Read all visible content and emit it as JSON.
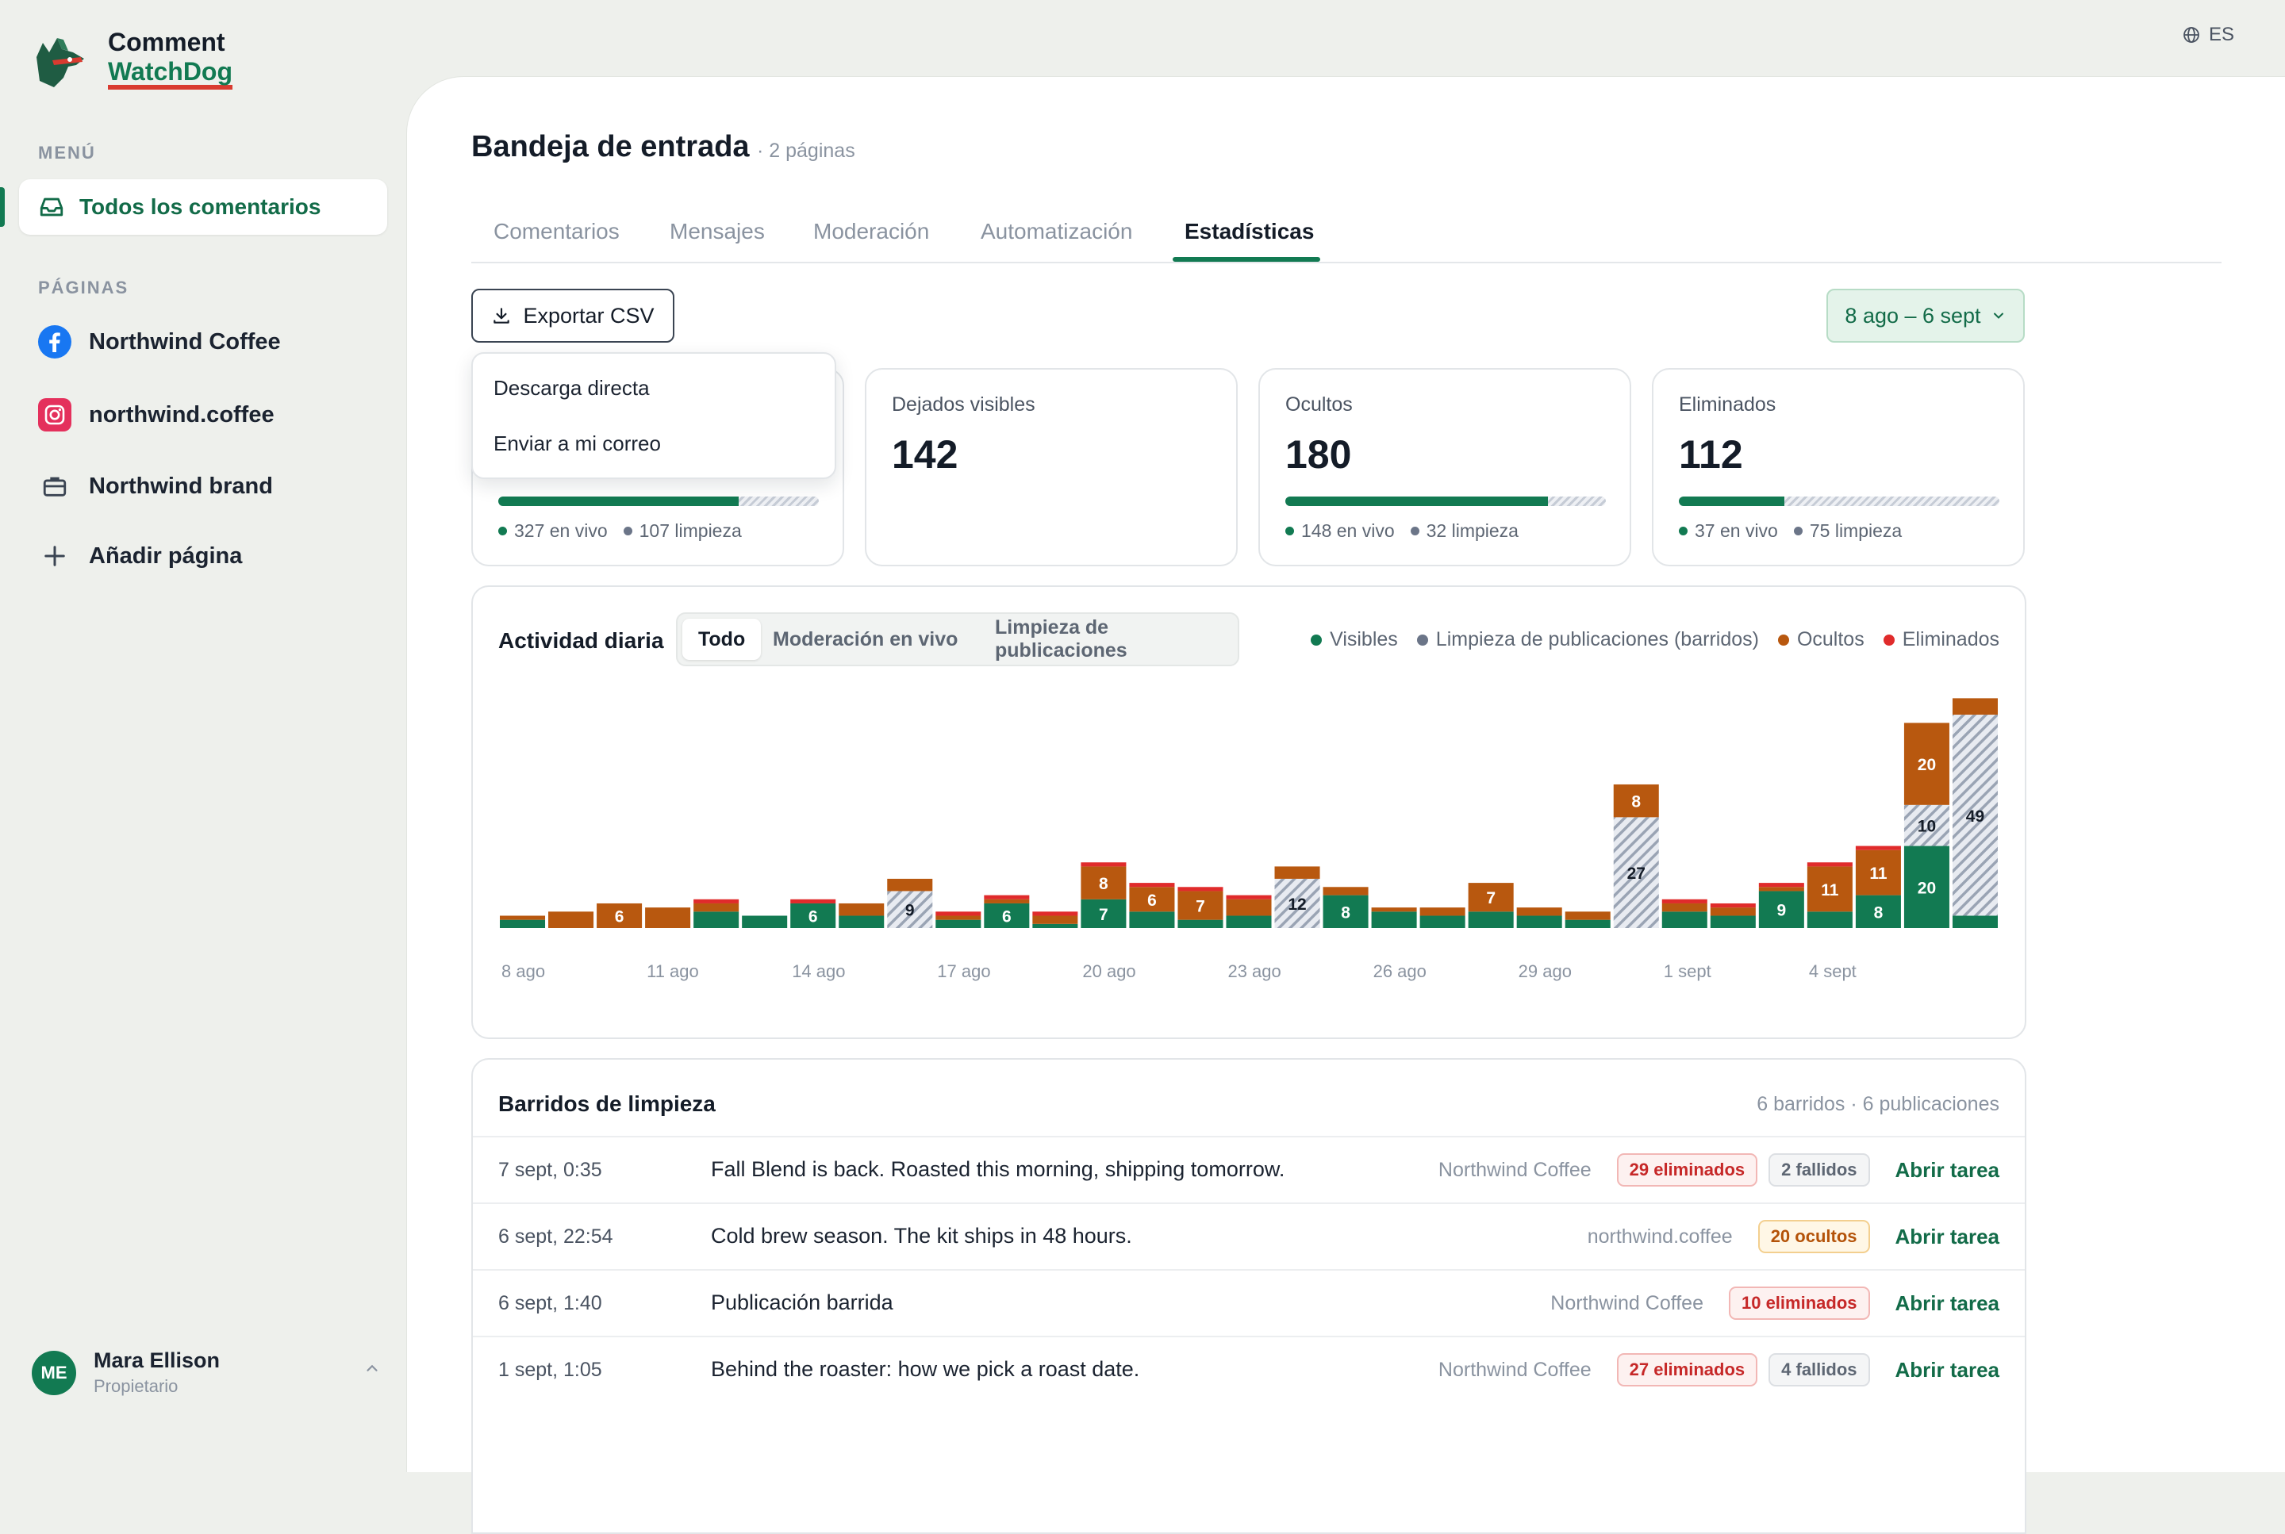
{
  "brand": {
    "line1": "Comment",
    "line2": "WatchDog"
  },
  "sidebar": {
    "menu_label": "MENÚ",
    "active_item": "Todos los comentarios",
    "pages_label": "PÁGINAS",
    "pages": [
      {
        "label": "Northwind Coffee",
        "icon": "facebook-icon"
      },
      {
        "label": "northwind.coffee",
        "icon": "instagram-icon"
      },
      {
        "label": "Northwind brand",
        "icon": "briefcase-icon"
      }
    ],
    "add_page": "Añadir página",
    "user": {
      "initials": "ME",
      "name": "Mara Ellison",
      "role": "Propietario"
    }
  },
  "lang": "ES",
  "header": {
    "title": "Bandeja de entrada",
    "subtitle": "· 2 páginas"
  },
  "tabs": [
    "Comentarios",
    "Mensajes",
    "Moderación",
    "Automatización",
    "Estadísticas"
  ],
  "active_tab": "Estadísticas",
  "toolbar": {
    "export_label": "Exportar CSV",
    "date_range": "8 ago – 6 sept"
  },
  "export_menu": [
    "Descarga directa",
    "Enviar a mi correo"
  ],
  "stats": [
    {
      "label": "",
      "value": "",
      "live_fraction": 0.75,
      "legend": [
        "327 en vivo",
        "107 limpieza"
      ]
    },
    {
      "label": "Dejados visibles",
      "value": "142"
    },
    {
      "label": "Ocultos",
      "value": "180",
      "live_fraction": 0.82,
      "legend": [
        "148 en vivo",
        "32 limpieza"
      ]
    },
    {
      "label": "Eliminados",
      "value": "112",
      "live_fraction": 0.33,
      "legend": [
        "37 en vivo",
        "75 limpieza"
      ]
    }
  ],
  "activity": {
    "title": "Actividad diaria",
    "filters": [
      "Todo",
      "Moderación en vivo",
      "Limpieza de publicaciones"
    ],
    "active_filter": "Todo",
    "legend": [
      {
        "label": "Visibles",
        "color": "#127a52"
      },
      {
        "label": "Limpieza de publicaciones (barridos)",
        "color": "#6b7588"
      },
      {
        "label": "Ocultos",
        "color": "#b8580f"
      },
      {
        "label": "Eliminados",
        "color": "#e02b2b"
      }
    ]
  },
  "chart_data": {
    "type": "bar",
    "stacked": true,
    "categories": [
      "8 ago",
      "9 ago",
      "10 ago",
      "11 ago",
      "12 ago",
      "13 ago",
      "14 ago",
      "15 ago",
      "16 ago",
      "17 ago",
      "18 ago",
      "19 ago",
      "20 ago",
      "21 ago",
      "22 ago",
      "23 ago",
      "24 ago",
      "25 ago",
      "26 ago",
      "27 ago",
      "28 ago",
      "29 ago",
      "30 ago",
      "31 ago",
      "1 sept",
      "2 sept",
      "3 sept",
      "4 sept",
      "5 sept",
      "6 sept"
    ],
    "tick_labels": [
      "8 ago",
      "11 ago",
      "14 ago",
      "17 ago",
      "20 ago",
      "23 ago",
      "26 ago",
      "29 ago",
      "1 sept",
      "4 sept"
    ],
    "series": [
      {
        "name": "Visibles",
        "values": [
          2,
          0,
          0,
          0,
          4,
          3,
          6,
          3,
          0,
          2,
          6,
          1,
          7,
          4,
          2,
          3,
          0,
          8,
          4,
          3,
          4,
          3,
          2,
          0,
          4,
          3,
          9,
          4,
          8,
          20
        ]
      },
      {
        "name": "Limpieza de publicaciones (barridos)",
        "values": [
          0,
          0,
          0,
          0,
          0,
          0,
          0,
          0,
          9,
          0,
          0,
          0,
          0,
          0,
          0,
          0,
          12,
          0,
          0,
          0,
          0,
          0,
          0,
          27,
          0,
          0,
          0,
          0,
          0,
          10
        ]
      },
      {
        "name": "Ocultos",
        "values": [
          1,
          4,
          6,
          5,
          2,
          0,
          0,
          3,
          3,
          1,
          1,
          2,
          8,
          6,
          7,
          4,
          3,
          2,
          1,
          2,
          7,
          2,
          2,
          8,
          2,
          2,
          1,
          11,
          11,
          20
        ]
      },
      {
        "name": "Eliminados",
        "values": [
          0,
          0,
          0,
          0,
          1,
          0,
          1,
          0,
          0,
          1,
          1,
          1,
          1,
          1,
          1,
          1,
          0,
          0,
          0,
          0,
          0,
          0,
          0,
          0,
          1,
          1,
          1,
          1,
          1,
          0
        ]
      }
    ],
    "extra_bar": {
      "label": "",
      "segments": [
        {
          "series": "Visibles",
          "value": 3
        },
        {
          "series": "Limpieza de publicaciones (barridos)",
          "value": 49
        },
        {
          "series": "Ocultos",
          "value": 4
        },
        {
          "series": "Eliminados",
          "value": 0
        }
      ]
    },
    "value_labels_min": 6,
    "ylim": [
      0,
      58
    ]
  },
  "sweeps": {
    "title": "Barridos de limpieza",
    "meta": "6 barridos · 6 publicaciones",
    "rows": [
      {
        "date": "7 sept, 0:35",
        "text": "Fall Blend is back. Roasted this morning, shipping tomorrow.",
        "page": "Northwind Coffee",
        "badges": [
          {
            "text": "29 eliminados",
            "kind": "red"
          },
          {
            "text": "2 fallidos",
            "kind": "grey"
          }
        ],
        "link": "Abrir tarea"
      },
      {
        "date": "6 sept, 22:54",
        "text": "Cold brew season. The kit ships in 48 hours.",
        "page": "northwind.coffee",
        "badges": [
          {
            "text": "20 ocultos",
            "kind": "amber"
          }
        ],
        "link": "Abrir tarea"
      },
      {
        "date": "6 sept, 1:40",
        "text": "Publicación barrida",
        "page": "Northwind Coffee",
        "badges": [
          {
            "text": "10 eliminados",
            "kind": "red"
          }
        ],
        "link": "Abrir tarea"
      },
      {
        "date": "1 sept, 1:05",
        "text": "Behind the roaster: how we pick a roast date.",
        "page": "Northwind Coffee",
        "badges": [
          {
            "text": "27 eliminados",
            "kind": "red"
          },
          {
            "text": "4 fallidos",
            "kind": "grey"
          }
        ],
        "link": "Abrir tarea"
      }
    ]
  }
}
